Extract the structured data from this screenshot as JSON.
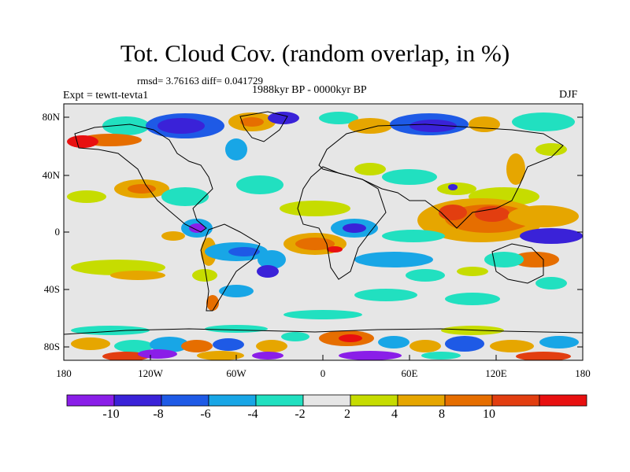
{
  "title": "Tot. Cloud Cov. (random overlap, in %)",
  "stats": "rmsd= 3.76163 diff= 0.041729",
  "period": "1988kyr BP - 0000kyr BP",
  "experiment": "Expt = tewtt-tevta1",
  "season": "DJF",
  "lat_ticks": [
    "80N",
    "40N",
    "0",
    "40S",
    "80S"
  ],
  "lon_ticks": [
    "180",
    "120W",
    "60W",
    "0",
    "60E",
    "120E",
    "180"
  ],
  "colorbar": {
    "colors": [
      "#8a1ee8",
      "#3a22d8",
      "#1e5ae6",
      "#18a6e6",
      "#21e0c0",
      "#e6e6e6",
      "#c6dc00",
      "#e6a600",
      "#e66e00",
      "#e23e10",
      "#e81010"
    ],
    "labels": [
      "-10",
      "-8",
      "-6",
      "-4",
      "-2",
      "2",
      "4",
      "8",
      "10"
    ]
  },
  "icons": {
    "map": "world-map-coastline"
  }
}
